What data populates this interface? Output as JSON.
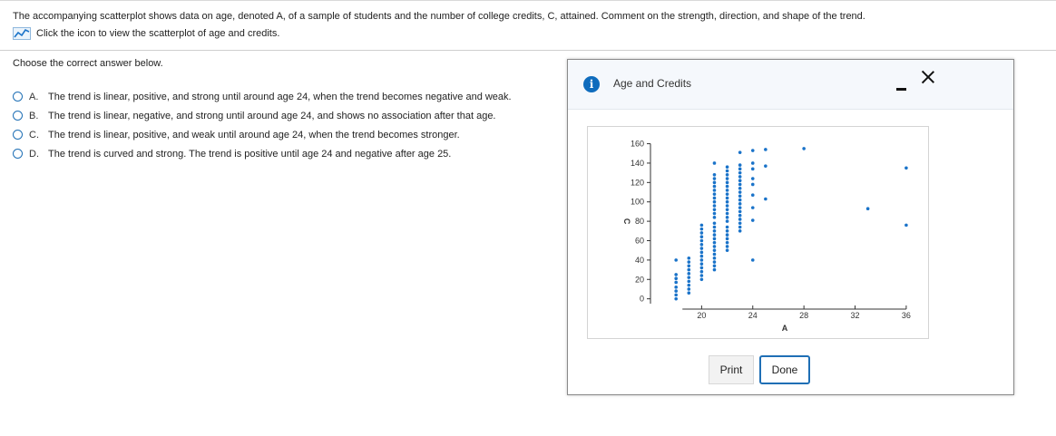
{
  "question": {
    "text": "The accompanying scatterplot shows data on age, denoted A, of a sample of students and the number of college credits, C, attained. Comment on the strength, direction, and shape of the trend.",
    "icon_link_label": "Click the icon to view the scatterplot of age and credits."
  },
  "prompt": "Choose the correct answer below.",
  "options": [
    {
      "letter": "A.",
      "text": "The trend is linear, positive, and strong until around age 24, when the trend becomes negative and weak."
    },
    {
      "letter": "B.",
      "text": "The trend is linear, negative, and strong until around age 24, and shows no association after that age."
    },
    {
      "letter": "C.",
      "text": "The trend is linear, positive, and weak until around age 24, when the trend becomes stronger."
    },
    {
      "letter": "D.",
      "text": "The trend is curved and strong. The trend is positive until age 24 and negative after age 25."
    }
  ],
  "dialog": {
    "title": "Age and Credits",
    "print_label": "Print",
    "done_label": "Done"
  },
  "colors": {
    "accent": "#1f6fb5",
    "point": "#1a73c9",
    "info": "#0f6cbd"
  },
  "chart_data": {
    "type": "scatter",
    "xlabel": "A",
    "ylabel": "C",
    "xlim": [
      16,
      37
    ],
    "ylim": [
      -5,
      168
    ],
    "x_ticks": [
      20,
      24,
      28,
      32,
      36
    ],
    "y_ticks": [
      0,
      20,
      40,
      60,
      80,
      100,
      120,
      140,
      160
    ],
    "points": [
      [
        18,
        0
      ],
      [
        18,
        4
      ],
      [
        18,
        8
      ],
      [
        18,
        12
      ],
      [
        18,
        17
      ],
      [
        18,
        21
      ],
      [
        18,
        25
      ],
      [
        18,
        40
      ],
      [
        19,
        6
      ],
      [
        19,
        10
      ],
      [
        19,
        14
      ],
      [
        19,
        18
      ],
      [
        19,
        22
      ],
      [
        19,
        26
      ],
      [
        19,
        30
      ],
      [
        19,
        34
      ],
      [
        19,
        38
      ],
      [
        19,
        42
      ],
      [
        20,
        20
      ],
      [
        20,
        24
      ],
      [
        20,
        28
      ],
      [
        20,
        32
      ],
      [
        20,
        36
      ],
      [
        20,
        40
      ],
      [
        20,
        44
      ],
      [
        20,
        48
      ],
      [
        20,
        52
      ],
      [
        20,
        56
      ],
      [
        20,
        60
      ],
      [
        20,
        64
      ],
      [
        20,
        68
      ],
      [
        20,
        72
      ],
      [
        20,
        76
      ],
      [
        21,
        30
      ],
      [
        21,
        34
      ],
      [
        21,
        38
      ],
      [
        21,
        42
      ],
      [
        21,
        46
      ],
      [
        21,
        50
      ],
      [
        21,
        54
      ],
      [
        21,
        58
      ],
      [
        21,
        62
      ],
      [
        21,
        66
      ],
      [
        21,
        70
      ],
      [
        21,
        74
      ],
      [
        21,
        78
      ],
      [
        21,
        84
      ],
      [
        21,
        88
      ],
      [
        21,
        92
      ],
      [
        21,
        96
      ],
      [
        21,
        100
      ],
      [
        21,
        104
      ],
      [
        21,
        108
      ],
      [
        21,
        112
      ],
      [
        21,
        116
      ],
      [
        21,
        120
      ],
      [
        21,
        124
      ],
      [
        21,
        128
      ],
      [
        21,
        140
      ],
      [
        22,
        50
      ],
      [
        22,
        54
      ],
      [
        22,
        58
      ],
      [
        22,
        62
      ],
      [
        22,
        66
      ],
      [
        22,
        70
      ],
      [
        22,
        74
      ],
      [
        22,
        80
      ],
      [
        22,
        84
      ],
      [
        22,
        88
      ],
      [
        22,
        92
      ],
      [
        22,
        96
      ],
      [
        22,
        100
      ],
      [
        22,
        104
      ],
      [
        22,
        108
      ],
      [
        22,
        112
      ],
      [
        22,
        116
      ],
      [
        22,
        120
      ],
      [
        22,
        124
      ],
      [
        22,
        128
      ],
      [
        22,
        132
      ],
      [
        22,
        136
      ],
      [
        23,
        70
      ],
      [
        23,
        74
      ],
      [
        23,
        78
      ],
      [
        23,
        82
      ],
      [
        23,
        86
      ],
      [
        23,
        90
      ],
      [
        23,
        94
      ],
      [
        23,
        98
      ],
      [
        23,
        102
      ],
      [
        23,
        106
      ],
      [
        23,
        110
      ],
      [
        23,
        114
      ],
      [
        23,
        118
      ],
      [
        23,
        122
      ],
      [
        23,
        126
      ],
      [
        23,
        130
      ],
      [
        23,
        134
      ],
      [
        23,
        138
      ],
      [
        23,
        151
      ],
      [
        24,
        40
      ],
      [
        24,
        81
      ],
      [
        24,
        94
      ],
      [
        24,
        107
      ],
      [
        24,
        118
      ],
      [
        24,
        124
      ],
      [
        24,
        134
      ],
      [
        24,
        140
      ],
      [
        24,
        153
      ],
      [
        25,
        103
      ],
      [
        25,
        137
      ],
      [
        25,
        154
      ],
      [
        28,
        155
      ],
      [
        33,
        93
      ],
      [
        36,
        76
      ],
      [
        36,
        135
      ]
    ]
  }
}
